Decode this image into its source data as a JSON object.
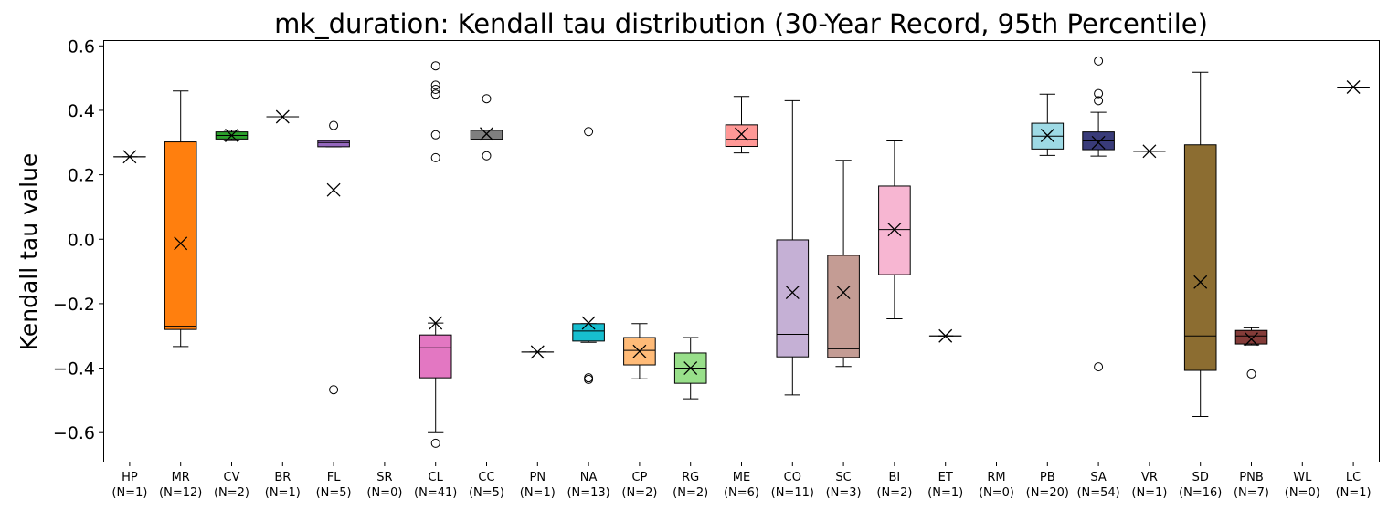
{
  "chart_data": {
    "type": "box",
    "title": "mk_duration: Kendall tau distribution (30-Year Record, 95th Percentile)",
    "ylabel": "Kendall tau value",
    "xlabel": "",
    "ylim": [
      -0.69,
      0.615
    ],
    "yticks": [
      -0.6,
      -0.4,
      -0.2,
      0.0,
      0.2,
      0.4,
      0.6
    ],
    "ytick_labels": [
      "−0.6",
      "−0.4",
      "−0.2",
      "0.0",
      "0.2",
      "0.4",
      "0.6"
    ],
    "grid": false,
    "mean_marker": "x",
    "groups": [
      {
        "label": "HP",
        "n_label": "(N=1)",
        "color": "#1f77b4",
        "box": [
          0.256,
          0.256,
          0.256,
          0.256,
          0.256
        ],
        "mean": 0.256,
        "outliers": []
      },
      {
        "label": "MR",
        "n_label": "(N=12)",
        "color": "#ff7f0e",
        "box": [
          -0.333,
          -0.28,
          -0.27,
          0.302,
          0.46
        ],
        "mean": -0.013,
        "outliers": []
      },
      {
        "label": "CV",
        "n_label": "(N=2)",
        "color": "#2ca02c",
        "box": [
          0.306,
          0.311,
          0.322,
          0.333,
          0.338
        ],
        "mean": 0.322,
        "outliers": []
      },
      {
        "label": "BR",
        "n_label": "(N=1)",
        "color": "#d62728",
        "box": [
          0.38,
          0.38,
          0.38,
          0.38,
          0.38
        ],
        "mean": 0.38,
        "outliers": []
      },
      {
        "label": "FL",
        "n_label": "(N=5)",
        "color": "#9467bd",
        "box": [
          0.287,
          0.287,
          0.3,
          0.306,
          0.306
        ],
        "mean": 0.153,
        "outliers": [
          0.353,
          -0.467
        ]
      },
      {
        "label": "SR",
        "n_label": "(N=0)",
        "color": "#8c564b",
        "box": null,
        "mean": null,
        "outliers": []
      },
      {
        "label": "CL",
        "n_label": "(N=41)",
        "color": "#e377c2",
        "box": [
          -0.6,
          -0.43,
          -0.337,
          -0.297,
          -0.26
        ],
        "mean": -0.26,
        "outliers": [
          0.538,
          0.478,
          0.465,
          0.45,
          0.324,
          0.253,
          -0.633
        ]
      },
      {
        "label": "CC",
        "n_label": "(N=5)",
        "color": "#7f7f7f",
        "box": [
          0.31,
          0.31,
          0.31,
          0.338,
          0.338
        ],
        "mean": 0.327,
        "outliers": [
          0.436,
          0.259
        ]
      },
      {
        "label": "PN",
        "n_label": "(N=1)",
        "color": "#bcbd22",
        "box": [
          -0.35,
          -0.35,
          -0.35,
          -0.35,
          -0.35
        ],
        "mean": -0.35,
        "outliers": []
      },
      {
        "label": "NA",
        "n_label": "(N=13)",
        "color": "#17becf",
        "box": [
          -0.32,
          -0.316,
          -0.285,
          -0.262,
          -0.262
        ],
        "mean": -0.26,
        "outliers": [
          0.334,
          -0.43,
          -0.435
        ]
      },
      {
        "label": "CP",
        "n_label": "(N=2)",
        "color": "#ffbb78",
        "box": [
          -0.433,
          -0.39,
          -0.345,
          -0.305,
          -0.262
        ],
        "mean": -0.348,
        "outliers": []
      },
      {
        "label": "RG",
        "n_label": "(N=2)",
        "color": "#98df8a",
        "box": [
          -0.495,
          -0.447,
          -0.4,
          -0.353,
          -0.305
        ],
        "mean": -0.4,
        "outliers": []
      },
      {
        "label": "ME",
        "n_label": "(N=6)",
        "color": "#ff9896",
        "box": [
          0.268,
          0.288,
          0.31,
          0.355,
          0.443
        ],
        "mean": 0.326,
        "outliers": []
      },
      {
        "label": "CO",
        "n_label": "(N=11)",
        "color": "#c5b0d5",
        "box": [
          -0.483,
          -0.365,
          -0.295,
          -0.002,
          0.43
        ],
        "mean": -0.165,
        "outliers": []
      },
      {
        "label": "SC",
        "n_label": "(N=3)",
        "color": "#c49c94",
        "box": [
          -0.395,
          -0.367,
          -0.34,
          -0.05,
          0.245
        ],
        "mean": -0.165,
        "outliers": []
      },
      {
        "label": "BI",
        "n_label": "(N=2)",
        "color": "#f7b6d2",
        "box": [
          -0.247,
          -0.11,
          0.03,
          0.165,
          0.305
        ],
        "mean": 0.03,
        "outliers": []
      },
      {
        "label": "ET",
        "n_label": "(N=1)",
        "color": "#c7c7c7",
        "box": [
          -0.3,
          -0.3,
          -0.3,
          -0.3,
          -0.3
        ],
        "mean": -0.3,
        "outliers": []
      },
      {
        "label": "RM",
        "n_label": "(N=0)",
        "color": "#dbdb8d",
        "box": null,
        "mean": null,
        "outliers": []
      },
      {
        "label": "PB",
        "n_label": "(N=20)",
        "color": "#9edae5",
        "box": [
          0.26,
          0.28,
          0.32,
          0.36,
          0.45
        ],
        "mean": 0.322,
        "outliers": []
      },
      {
        "label": "SA",
        "n_label": "(N=54)",
        "color": "#393b79",
        "box": [
          0.258,
          0.278,
          0.305,
          0.333,
          0.394
        ],
        "mean": 0.3,
        "outliers": [
          0.553,
          0.452,
          0.43,
          -0.396
        ]
      },
      {
        "label": "VR",
        "n_label": "(N=1)",
        "color": "#637939",
        "box": [
          0.273,
          0.273,
          0.273,
          0.273,
          0.273
        ],
        "mean": 0.273,
        "outliers": []
      },
      {
        "label": "SD",
        "n_label": "(N=16)",
        "color": "#8c6d31",
        "box": [
          -0.55,
          -0.407,
          -0.3,
          0.293,
          0.518
        ],
        "mean": -0.133,
        "outliers": []
      },
      {
        "label": "PNB",
        "n_label": "(N=7)",
        "color": "#843c39",
        "box": [
          -0.328,
          -0.325,
          -0.3,
          -0.283,
          -0.275
        ],
        "mean": -0.31,
        "outliers": [
          -0.418
        ]
      },
      {
        "label": "WL",
        "n_label": "(N=0)",
        "color": "#7b4173",
        "box": null,
        "mean": null,
        "outliers": []
      },
      {
        "label": "LC",
        "n_label": "(N=1)",
        "color": "#5254a3",
        "box": [
          0.472,
          0.472,
          0.472,
          0.472,
          0.472
        ],
        "mean": 0.472,
        "outliers": []
      }
    ]
  }
}
